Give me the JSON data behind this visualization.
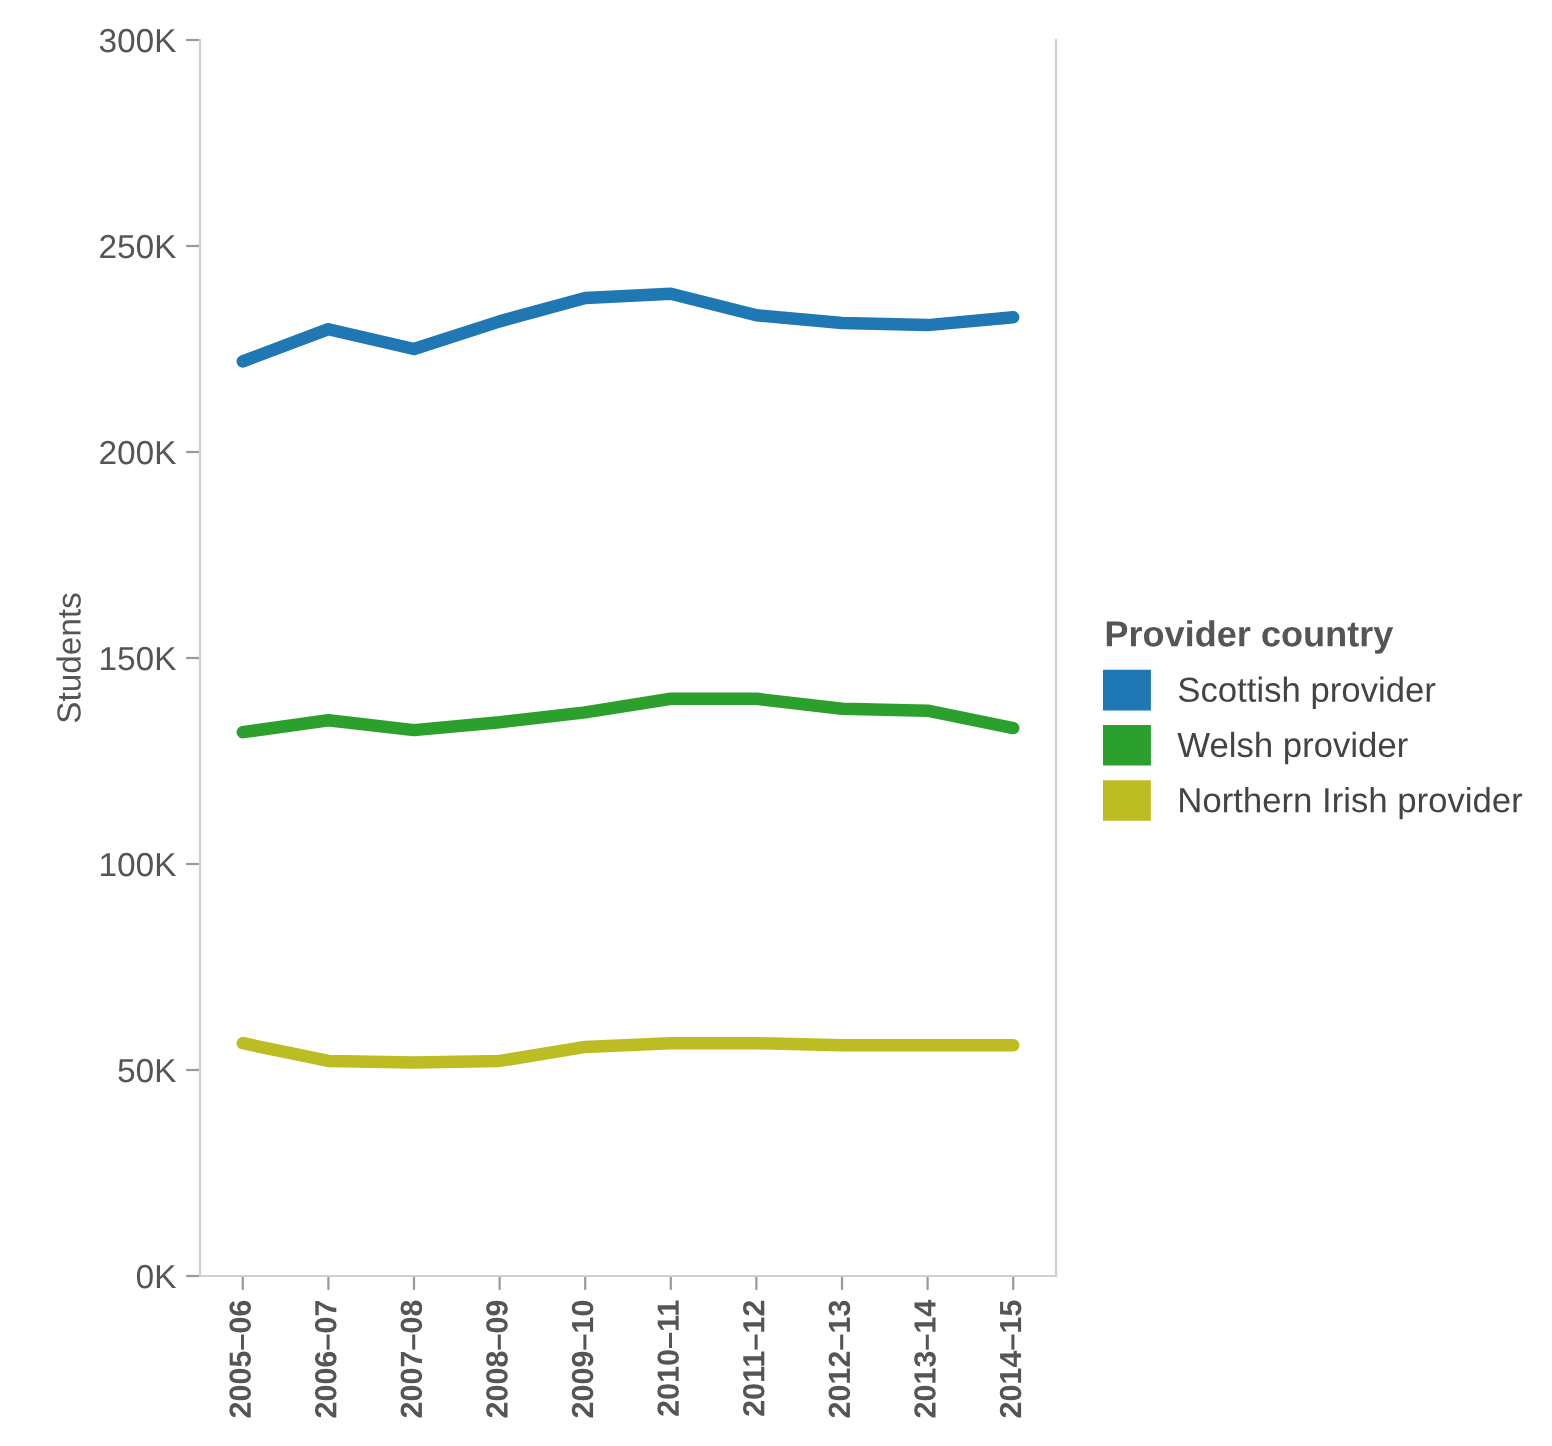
{
  "chart_data": {
    "type": "line",
    "ylabel": "Students",
    "legend_title": "Provider country",
    "legend": "right",
    "grid": false,
    "categories": [
      "2005–06",
      "2006–07",
      "2007–08",
      "2008–09",
      "2009–10",
      "2010–11",
      "2011–12",
      "2012–13",
      "2013–14",
      "2014–15"
    ],
    "ylim": [
      0,
      300000
    ],
    "yticks": [
      {
        "value": 0,
        "label": "0K"
      },
      {
        "value": 50000,
        "label": "50K"
      },
      {
        "value": 100000,
        "label": "100K"
      },
      {
        "value": 150000,
        "label": "150K"
      },
      {
        "value": 200000,
        "label": "200K"
      },
      {
        "value": 250000,
        "label": "250K"
      },
      {
        "value": 300000,
        "label": "300K"
      }
    ],
    "series": [
      {
        "name": "Scottish provider",
        "color": "#1f77b4",
        "values": [
          222000,
          229800,
          225000,
          231700,
          237400,
          238400,
          233200,
          231300,
          230800,
          232700
        ]
      },
      {
        "name": "Welsh provider",
        "color": "#2ca02c",
        "values": [
          132000,
          134900,
          132500,
          134400,
          136800,
          140100,
          140100,
          137700,
          137200,
          133000
        ]
      },
      {
        "name": "Northern Irish provider",
        "color": "#bcbd22",
        "values": [
          56500,
          52200,
          51800,
          52200,
          55600,
          56500,
          56500,
          56000,
          56000,
          56000
        ]
      }
    ]
  }
}
